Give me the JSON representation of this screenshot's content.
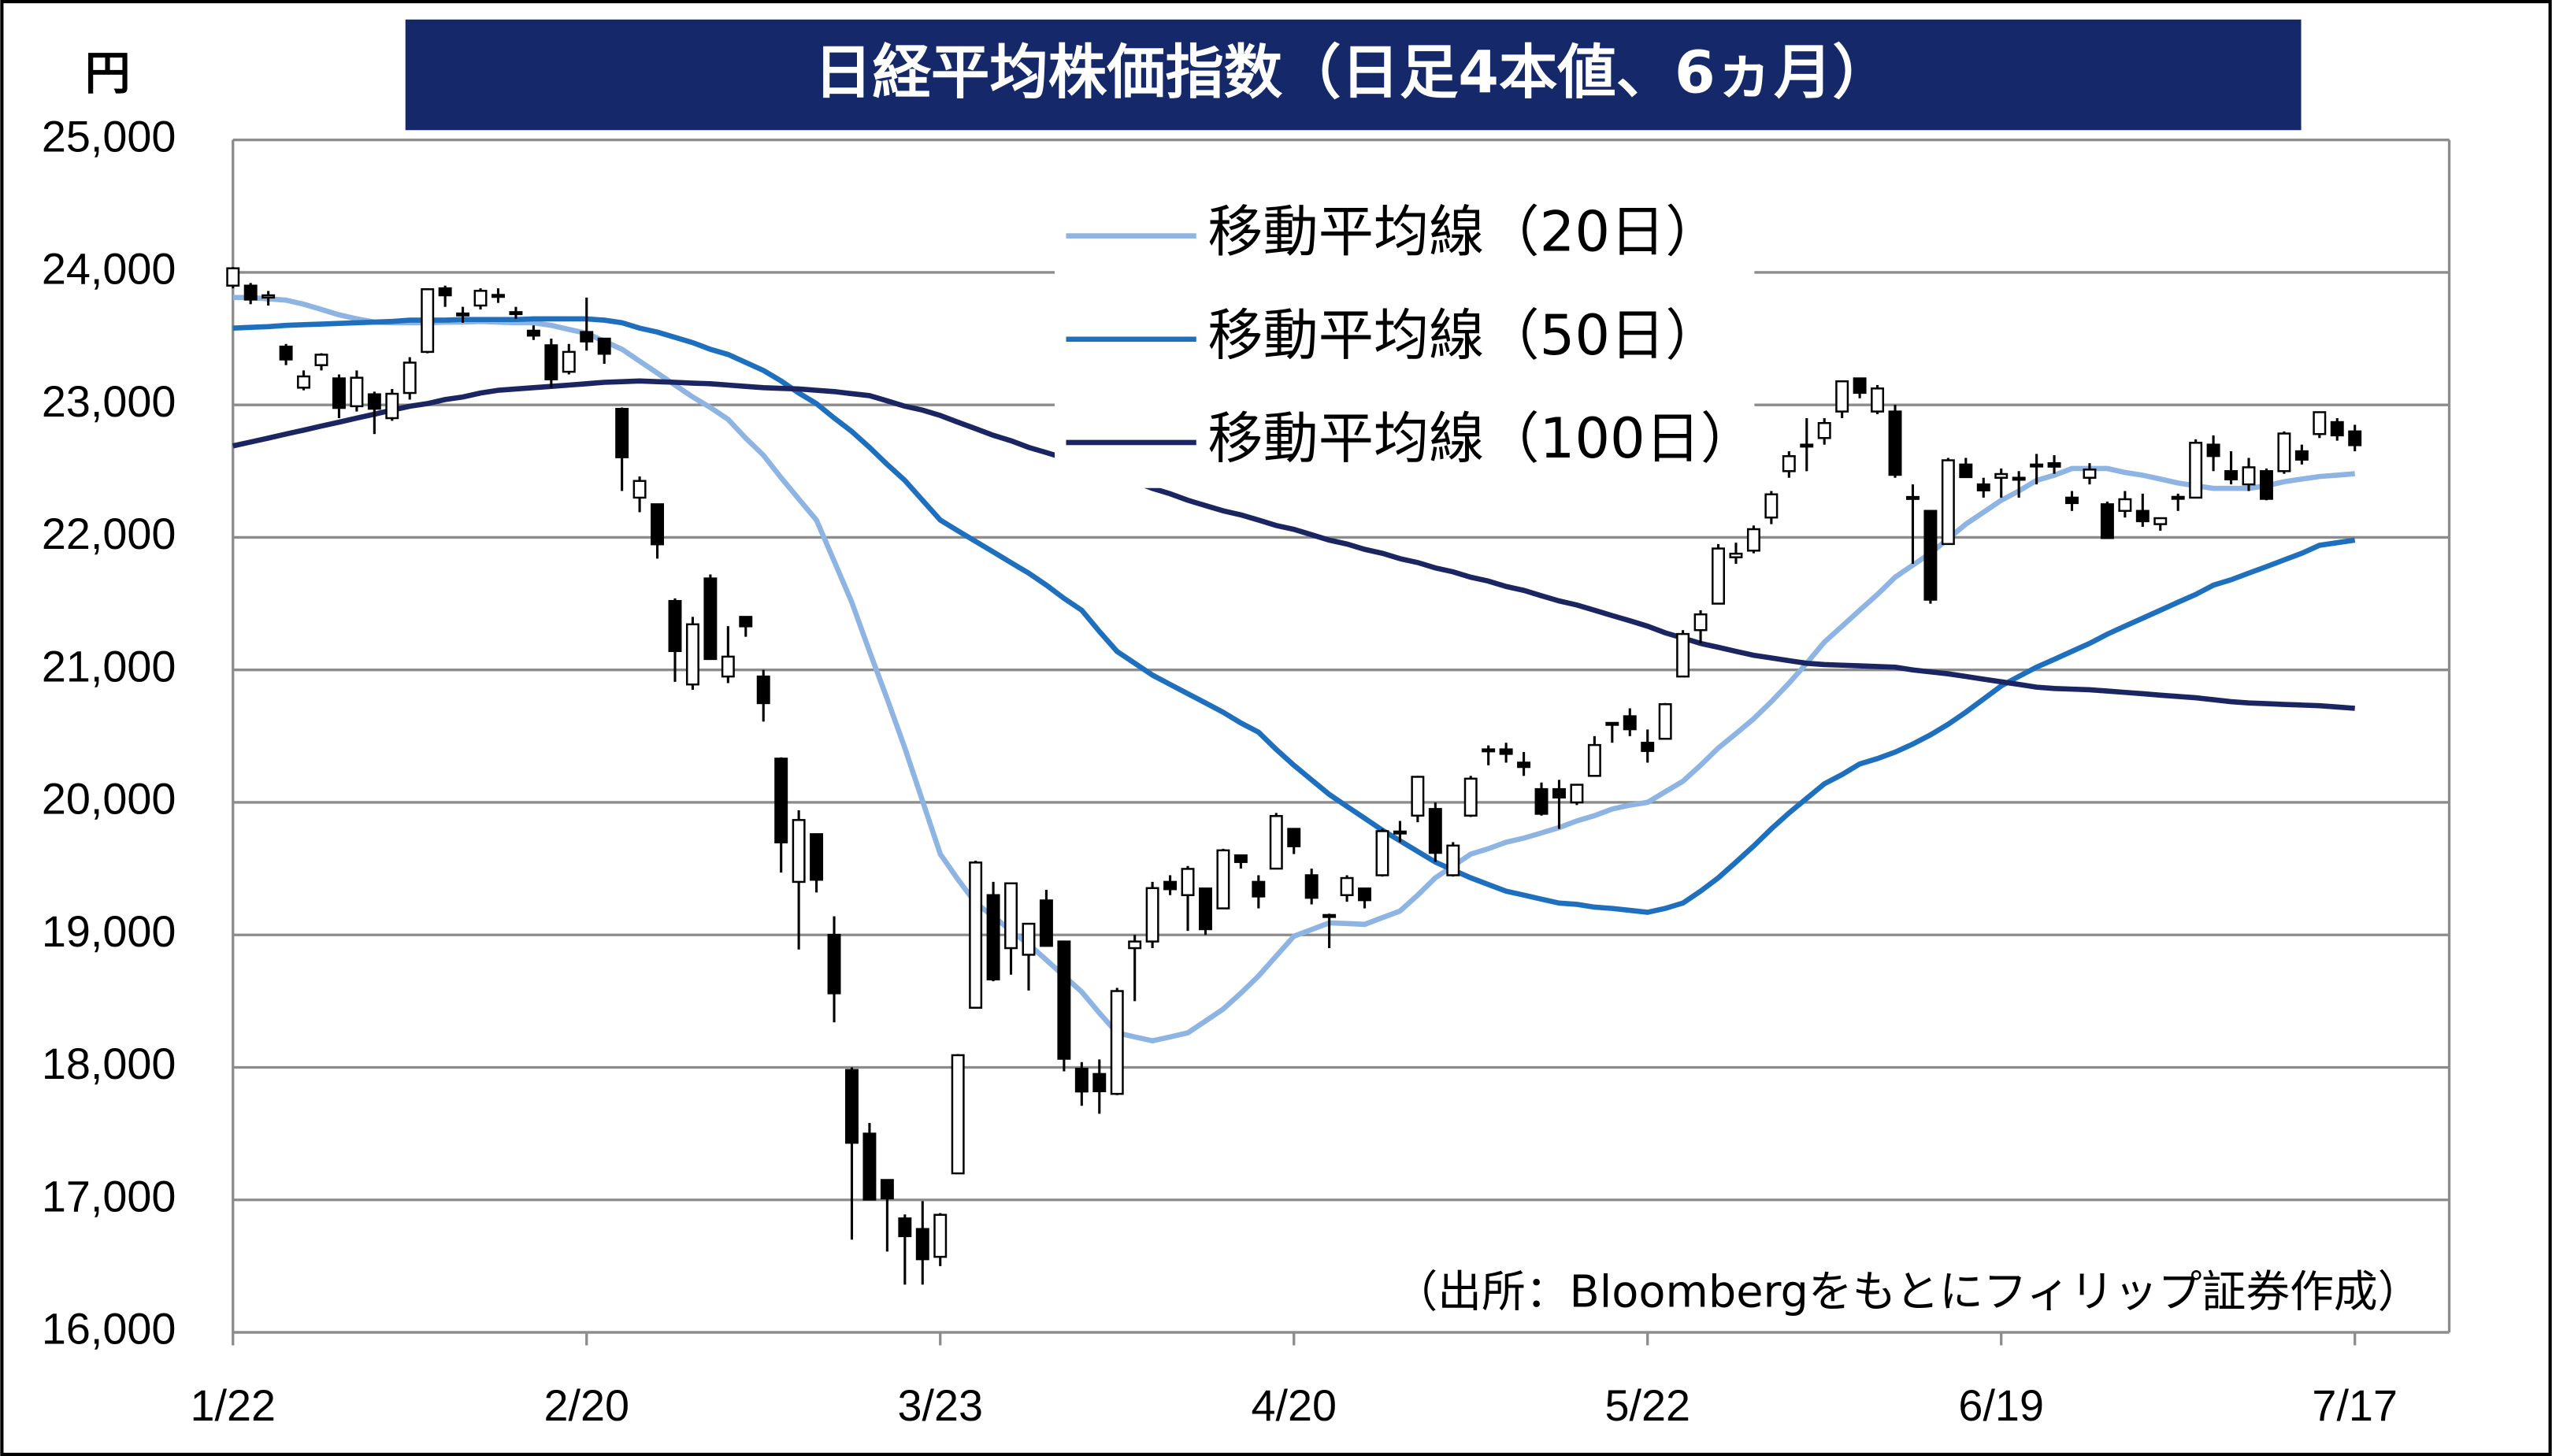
{
  "chart_data": {
    "type": "candlestick",
    "title": "日経平均株価指数（日足4本値、6ヵ月）",
    "y_unit": "円",
    "source": "（出所：Bloombergをもとにフィリップ証券作成）",
    "categories": [
      "1/22",
      null,
      null,
      null,
      null,
      null,
      null,
      null,
      null,
      null,
      null,
      null,
      null,
      null,
      null,
      null,
      null,
      null,
      null,
      null,
      "2/20",
      null,
      null,
      null,
      null,
      null,
      null,
      null,
      null,
      null,
      null,
      null,
      null,
      null,
      null,
      null,
      null,
      null,
      null,
      null,
      "3/23",
      null,
      null,
      null,
      null,
      null,
      null,
      null,
      null,
      null,
      null,
      null,
      null,
      null,
      null,
      null,
      null,
      null,
      null,
      null,
      "4/20",
      null,
      null,
      null,
      null,
      null,
      null,
      null,
      null,
      null,
      null,
      null,
      null,
      null,
      null,
      null,
      null,
      null,
      null,
      null,
      "5/22",
      null,
      null,
      null,
      null,
      null,
      null,
      null,
      null,
      null,
      null,
      null,
      null,
      null,
      null,
      null,
      null,
      null,
      null,
      null,
      "6/19",
      null,
      null,
      null,
      null,
      null,
      null,
      null,
      null,
      null,
      null,
      null,
      null,
      null,
      null,
      null,
      null,
      null,
      null,
      null,
      "7/17"
    ],
    "open": [
      23900,
      23900,
      23810,
      23440,
      23130,
      23300,
      23200,
      22990,
      23080,
      22900,
      23090,
      23400,
      23880,
      23690,
      23750,
      23830,
      23700,
      23560,
      23450,
      23250,
      23550,
      23500,
      22970,
      22300,
      22250,
      21520,
      20890,
      21690,
      20950,
      21400,
      20950,
      20330,
      19400,
      19760,
      19000,
      17980,
      17500,
      17150,
      16860,
      16780,
      16570,
      17200,
      18450,
      19300,
      18900,
      18850,
      19260,
      18950,
      17990,
      17950,
      17800,
      18900,
      18950,
      19400,
      19300,
      19350,
      19200,
      19600,
      19400,
      19500,
      19800,
      19450,
      19150,
      19300,
      19350,
      19450,
      19780,
      19900,
      19950,
      19450,
      19900,
      20400,
      20400,
      20300,
      20100,
      20100,
      20000,
      20200,
      20600,
      20650,
      20450,
      20480,
      20950,
      21300,
      21500,
      21850,
      21900,
      22150,
      22500,
      22700,
      22750,
      22950,
      23200,
      22950,
      22950,
      22300,
      22200,
      21950,
      22550,
      22400,
      22450,
      22450,
      22550,
      22560,
      22300,
      22450,
      22250,
      22200,
      22200,
      22100,
      22300,
      22300,
      22700,
      22500,
      22400,
      22500,
      22500,
      22650,
      22780,
      22870,
      22800
    ],
    "high": [
      24040,
      23920,
      23860,
      23460,
      23260,
      23390,
      23230,
      23260,
      23100,
      23120,
      23360,
      23880,
      23900,
      23740,
      23880,
      23880,
      23740,
      23600,
      23500,
      23460,
      23810,
      23500,
      22980,
      22460,
      22250,
      21540,
      21400,
      21720,
      21330,
      21400,
      21000,
      20340,
      19940,
      19760,
      19140,
      18000,
      17580,
      17150,
      16890,
      16990,
      16900,
      18100,
      19560,
      19400,
      19390,
      19090,
      19340,
      18950,
      18040,
      18060,
      18600,
      19000,
      19400,
      19450,
      19520,
      19350,
      19650,
      19600,
      19450,
      19920,
      19800,
      19500,
      19160,
      19450,
      19350,
      19800,
      19860,
      20200,
      20000,
      19700,
      20200,
      20430,
      20450,
      20380,
      20150,
      20170,
      20140,
      20500,
      20600,
      20710,
      20550,
      20750,
      21300,
      21450,
      21950,
      21960,
      22090,
      22350,
      22650,
      22900,
      22900,
      23180,
      23200,
      23150,
      23000,
      22400,
      22200,
      22600,
      22600,
      22450,
      22520,
      22500,
      22630,
      22620,
      22350,
      22560,
      22270,
      22350,
      22330,
      22150,
      22330,
      22740,
      22770,
      22650,
      22600,
      22520,
      22800,
      22700,
      22950,
      22900,
      22850
    ],
    "low": [
      23880,
      23760,
      23750,
      23300,
      23110,
      23260,
      22900,
      22950,
      22780,
      22880,
      23040,
      23390,
      23740,
      23620,
      23720,
      23770,
      23650,
      23490,
      23130,
      23230,
      23410,
      23310,
      22350,
      22190,
      21840,
      20910,
      20850,
      21080,
      20900,
      21250,
      20610,
      19470,
      18890,
      19320,
      18340,
      16700,
      17000,
      16610,
      16360,
      16360,
      16500,
      17200,
      18450,
      18650,
      18700,
      18580,
      18920,
      17970,
      17710,
      17650,
      17790,
      18500,
      18900,
      19300,
      19030,
      19000,
      19200,
      19500,
      19200,
      19500,
      19610,
      19230,
      18900,
      19250,
      19200,
      19440,
      19700,
      19850,
      19550,
      19440,
      19890,
      20280,
      20300,
      20200,
      19900,
      19800,
      19980,
      20200,
      20450,
      20500,
      20300,
      20480,
      20950,
      21200,
      21500,
      21800,
      21880,
      22100,
      22450,
      22500,
      22700,
      22900,
      23050,
      22930,
      22450,
      21800,
      21500,
      21950,
      22450,
      22300,
      22300,
      22300,
      22400,
      22480,
      22200,
      22400,
      21990,
      22150,
      22080,
      22050,
      22200,
      22300,
      22500,
      22400,
      22350,
      22280,
      22480,
      22550,
      22750,
      22730,
      22650
    ],
    "close": [
      24031,
      23795,
      23827,
      23343,
      23215,
      23379,
      22977,
      23205,
      22971,
      23084,
      23319,
      23873,
      23827,
      23685,
      23861,
      23827,
      23687,
      23523,
      23193,
      23400,
      23479,
      23386,
      22605,
      22426,
      21948,
      21142,
      21344,
      21082,
      21100,
      21329,
      20749,
      19698,
      19867,
      19416,
      18559,
      17431,
      17002,
      17011,
      16726,
      16552,
      16887,
      18092,
      19546,
      18664,
      19389,
      19084,
      18917,
      18065,
      17818,
      17820,
      18576,
      18950,
      19353,
      19345,
      19498,
      19043,
      19638,
      19550,
      19290,
      19897,
      19669,
      19280,
      19137,
      19429,
      19262,
      19783,
      19771,
      20193,
      19619,
      19674,
      20179,
      20390,
      20366,
      20267,
      19914,
      20037,
      20133,
      20433,
      20595,
      20552,
      20388,
      20741,
      21271,
      21419,
      21916,
      21877,
      22062,
      22325,
      22613,
      22695,
      22863,
      23178,
      23091,
      23124,
      22472,
      22305,
      21530,
      22582,
      22455,
      22355,
      22478,
      22437,
      22549,
      22534,
      22259,
      22512,
      21995,
      22288,
      22122,
      22145,
      22306,
      22714,
      22614,
      22438,
      22529,
      22291,
      22784,
      22587,
      22945,
      22770,
      22696
    ],
    "series": [
      {
        "name": "移動平均線（20日）",
        "color": "#8db4e2",
        "values": [
          23810,
          23810,
          23800,
          23790,
          23760,
          23720,
          23680,
          23650,
          23625,
          23620,
          23620,
          23620,
          23625,
          23625,
          23630,
          23625,
          23620,
          23620,
          23600,
          23570,
          23540,
          23480,
          23420,
          23330,
          23240,
          23150,
          23060,
          22980,
          22890,
          22750,
          22620,
          22450,
          22290,
          22130,
          21820,
          21510,
          21140,
          20780,
          20410,
          20010,
          19610,
          19420,
          19240,
          19140,
          19030,
          18930,
          18810,
          18690,
          18570,
          18410,
          18260,
          18230,
          18200,
          18230,
          18260,
          18350,
          18440,
          18560,
          18690,
          18840,
          18990,
          19040,
          19090,
          19085,
          19080,
          19130,
          19180,
          19300,
          19430,
          19520,
          19610,
          19650,
          19700,
          19730,
          19770,
          19810,
          19860,
          19900,
          19950,
          19980,
          20000,
          20080,
          20160,
          20280,
          20410,
          20520,
          20630,
          20760,
          20900,
          21050,
          21210,
          21330,
          21450,
          21570,
          21700,
          21790,
          21880,
          21990,
          22100,
          22190,
          22280,
          22350,
          22430,
          22470,
          22520,
          22520,
          22520,
          22490,
          22470,
          22440,
          22410,
          22390,
          22370,
          22370,
          22370,
          22390,
          22420,
          22440,
          22460,
          22470,
          22480
        ]
      },
      {
        "name": "移動平均線（50日）",
        "color": "#1f6fbf",
        "values": [
          23580,
          23585,
          23590,
          23600,
          23605,
          23610,
          23615,
          23620,
          23625,
          23630,
          23640,
          23640,
          23640,
          23645,
          23645,
          23645,
          23645,
          23650,
          23650,
          23650,
          23650,
          23640,
          23620,
          23580,
          23550,
          23510,
          23470,
          23420,
          23380,
          23320,
          23260,
          23180,
          23090,
          23010,
          22900,
          22800,
          22680,
          22550,
          22430,
          22280,
          22130,
          22050,
          21970,
          21890,
          21810,
          21730,
          21640,
          21540,
          21450,
          21290,
          21140,
          21050,
          20960,
          20890,
          20820,
          20750,
          20680,
          20600,
          20530,
          20400,
          20280,
          20170,
          20060,
          19970,
          19880,
          19790,
          19710,
          19630,
          19550,
          19490,
          19430,
          19380,
          19330,
          19300,
          19270,
          19240,
          19230,
          19210,
          19200,
          19185,
          19170,
          19200,
          19240,
          19330,
          19430,
          19550,
          19670,
          19800,
          19920,
          20030,
          20140,
          20210,
          20290,
          20330,
          20380,
          20440,
          20510,
          20590,
          20680,
          20780,
          20880,
          20950,
          21020,
          21080,
          21140,
          21200,
          21270,
          21330,
          21390,
          21450,
          21510,
          21570,
          21640,
          21680,
          21730,
          21780,
          21830,
          21880,
          21940,
          21960,
          21980
        ]
      },
      {
        "name": "移動平均線（100日）",
        "color": "#1b2561",
        "values": [
          22690,
          22720,
          22750,
          22780,
          22810,
          22840,
          22870,
          22900,
          22930,
          22960,
          22990,
          23010,
          23040,
          23060,
          23090,
          23110,
          23120,
          23130,
          23140,
          23150,
          23160,
          23170,
          23175,
          23180,
          23175,
          23170,
          23165,
          23160,
          23150,
          23140,
          23130,
          23125,
          23120,
          23110,
          23100,
          23085,
          23070,
          23030,
          22990,
          22960,
          22920,
          22870,
          22820,
          22770,
          22730,
          22680,
          22640,
          22600,
          22560,
          22510,
          22470,
          22420,
          22370,
          22330,
          22280,
          22240,
          22200,
          22170,
          22130,
          22090,
          22060,
          22020,
          21980,
          21950,
          21910,
          21880,
          21840,
          21810,
          21770,
          21740,
          21700,
          21670,
          21630,
          21600,
          21560,
          21520,
          21490,
          21450,
          21410,
          21370,
          21330,
          21280,
          21240,
          21200,
          21170,
          21140,
          21110,
          21090,
          21070,
          21050,
          21040,
          21035,
          21030,
          21025,
          21020,
          21000,
          20985,
          20970,
          20950,
          20930,
          20910,
          20890,
          20870,
          20860,
          20855,
          20850,
          20840,
          20830,
          20820,
          20810,
          20800,
          20790,
          20775,
          20760,
          20750,
          20745,
          20740,
          20735,
          20730,
          20720,
          20710
        ]
      }
    ],
    "ylim": [
      16000,
      25000
    ],
    "yticks": [
      {
        "value": 16000,
        "label": "16,000"
      },
      {
        "value": 17000,
        "label": "17,000"
      },
      {
        "value": 18000,
        "label": "18,000"
      },
      {
        "value": 19000,
        "label": "19,000"
      },
      {
        "value": 20000,
        "label": "20,000"
      },
      {
        "value": 21000,
        "label": "21,000"
      },
      {
        "value": 22000,
        "label": "22,000"
      },
      {
        "value": 23000,
        "label": "23,000"
      },
      {
        "value": 24000,
        "label": "24,000"
      },
      {
        "value": 25000,
        "label": "25,000"
      }
    ],
    "grid": true,
    "up_color": "#ffffff",
    "down_color": "#000000",
    "title_background": "#14286a"
  }
}
